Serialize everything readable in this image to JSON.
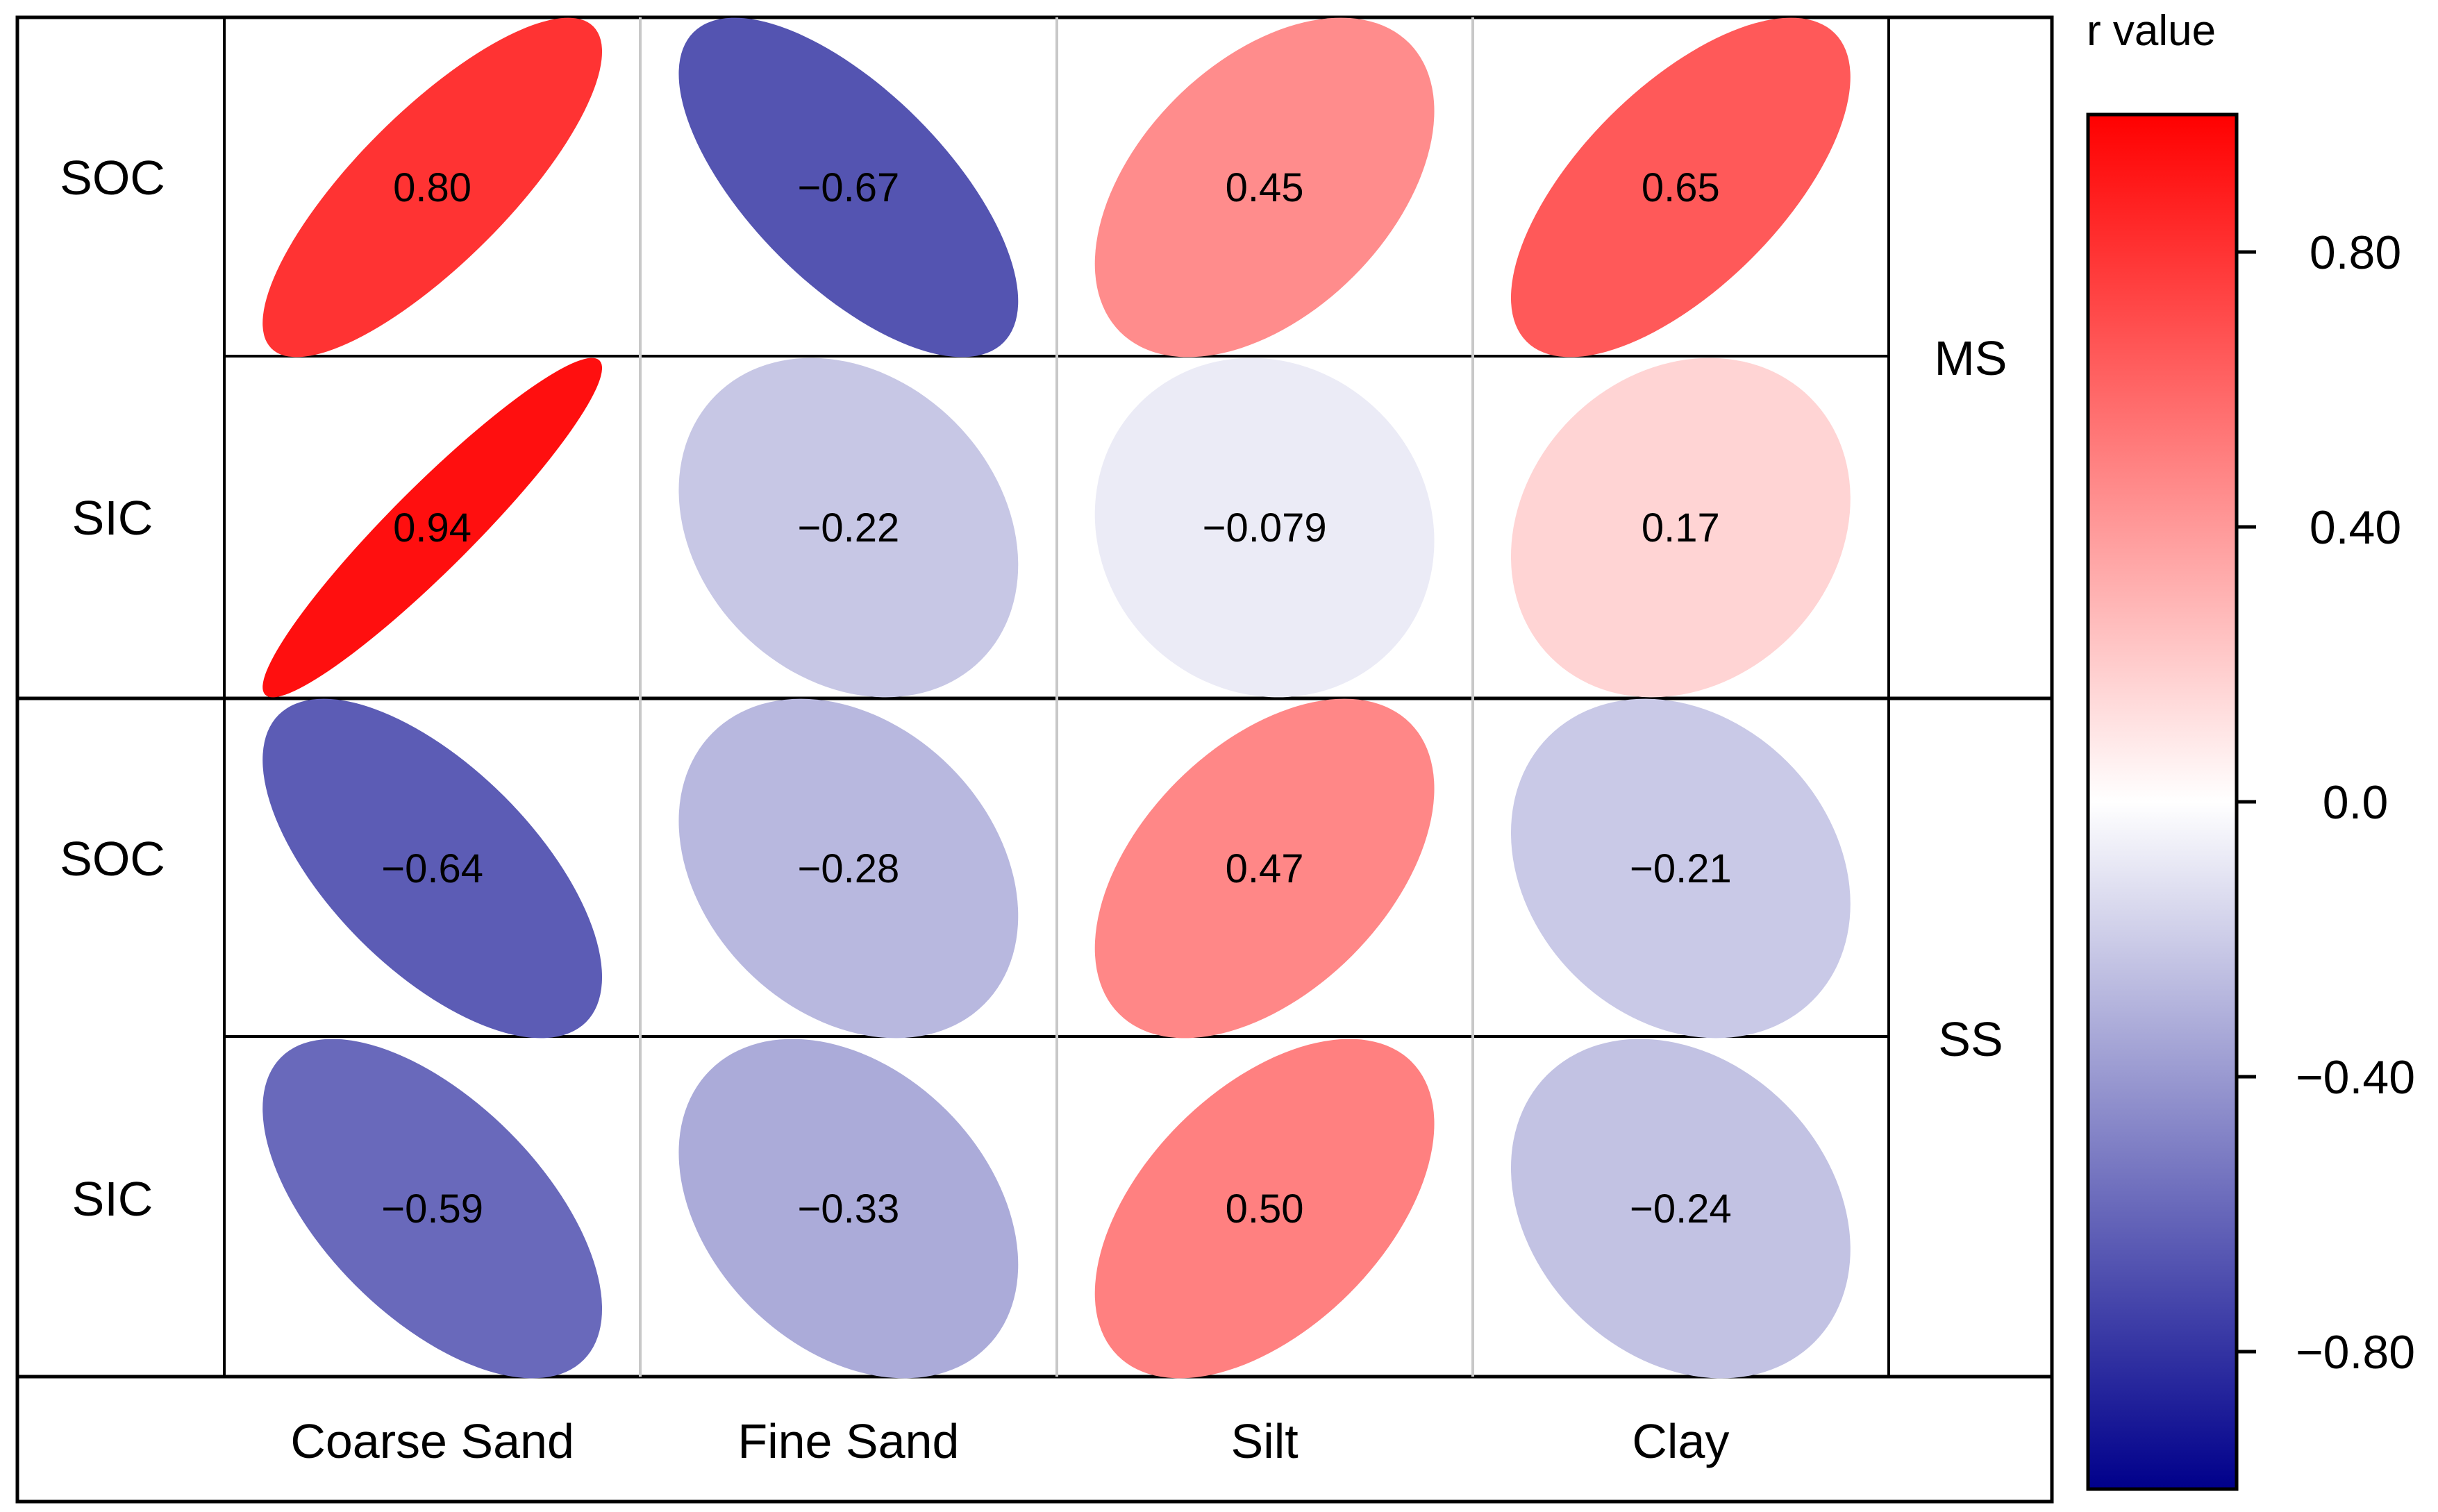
{
  "chart_data": {
    "type": "heatmap",
    "subtype": "correlation-ellipse",
    "columns": [
      "Coarse Sand",
      "Fine Sand",
      "Silt",
      "Clay"
    ],
    "groups": [
      {
        "name": "MS",
        "rows": [
          {
            "label": "SOC",
            "values": [
              0.8,
              -0.67,
              0.45,
              0.65
            ],
            "labels": [
              "0.80",
              "−0.67",
              "0.45",
              "0.65"
            ]
          },
          {
            "label": "SIC",
            "values": [
              0.94,
              -0.22,
              -0.079,
              0.17
            ],
            "labels": [
              "0.94",
              "−0.22",
              "−0.079",
              "0.17"
            ]
          }
        ]
      },
      {
        "name": "SS",
        "rows": [
          {
            "label": "SOC",
            "values": [
              -0.64,
              -0.28,
              0.47,
              -0.21
            ],
            "labels": [
              "−0.64",
              "−0.28",
              "0.47",
              "−0.21"
            ]
          },
          {
            "label": "SIC",
            "values": [
              -0.59,
              -0.33,
              0.5,
              -0.24
            ],
            "labels": [
              "−0.59",
              "−0.33",
              "0.50",
              "−0.24"
            ]
          }
        ]
      }
    ],
    "colorbar": {
      "title": "r value",
      "range": [
        -1,
        1
      ],
      "ticks": [
        0.8,
        0.4,
        0.0,
        -0.4,
        -0.8
      ],
      "tick_labels": [
        "0.80",
        "0.40",
        "0.0",
        "−0.40",
        "−0.80"
      ],
      "colors": {
        "low": "#00008b",
        "mid": "#ffffff",
        "high": "#ff0000"
      }
    }
  }
}
